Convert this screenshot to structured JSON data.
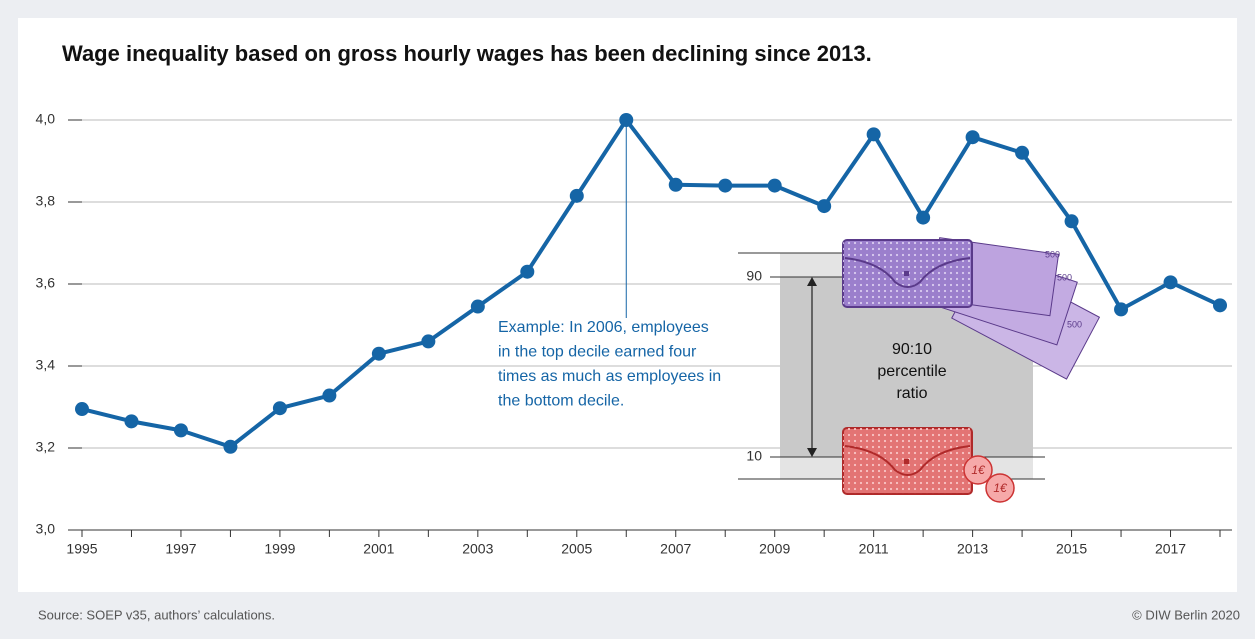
{
  "chart_data": {
    "type": "line",
    "title": "Wage inequality based on gross hourly wages has been declining since 2013.",
    "x": [
      1995,
      1996,
      1997,
      1998,
      1999,
      2000,
      2001,
      2002,
      2003,
      2004,
      2005,
      2006,
      2007,
      2008,
      2009,
      2010,
      2011,
      2012,
      2013,
      2014,
      2015,
      2016,
      2017,
      2018
    ],
    "values": [
      3.295,
      3.265,
      3.243,
      3.203,
      3.297,
      3.328,
      3.43,
      3.46,
      3.545,
      3.63,
      3.815,
      4.0,
      3.842,
      3.84,
      3.84,
      3.79,
      3.965,
      3.762,
      3.958,
      3.92,
      3.753,
      3.538,
      3.604,
      3.548
    ],
    "color": "#1565a6",
    "xlim": [
      1995,
      2018
    ],
    "xticks": [
      1995,
      1997,
      1999,
      2001,
      2003,
      2005,
      2007,
      2009,
      2011,
      2013,
      2015,
      2017
    ],
    "ylim": [
      3.0,
      4.0
    ],
    "yticks": [
      {
        "value": 3.0,
        "label": "3,0"
      },
      {
        "value": 3.2,
        "label": "3,2"
      },
      {
        "value": 3.4,
        "label": "3,4"
      },
      {
        "value": 3.6,
        "label": "3,6"
      },
      {
        "value": 3.8,
        "label": "3,8"
      },
      {
        "value": 4.0,
        "label": "4,0"
      }
    ],
    "grid": true,
    "annotation": {
      "x": 2006,
      "lines": [
        "Example: In 2006, employees",
        "in the top decile earned four",
        "times as much as employees in",
        "the bottom decile."
      ]
    },
    "illustration": {
      "upper": 90,
      "lower": 10,
      "ratio_lines": [
        "90:10",
        "percentile",
        "ratio"
      ],
      "note": "500",
      "coin": "1€"
    }
  },
  "footer": {
    "source": "Source: SOEP v35, authors’ calculations.",
    "copyright": "© DIW Berlin 2020"
  }
}
